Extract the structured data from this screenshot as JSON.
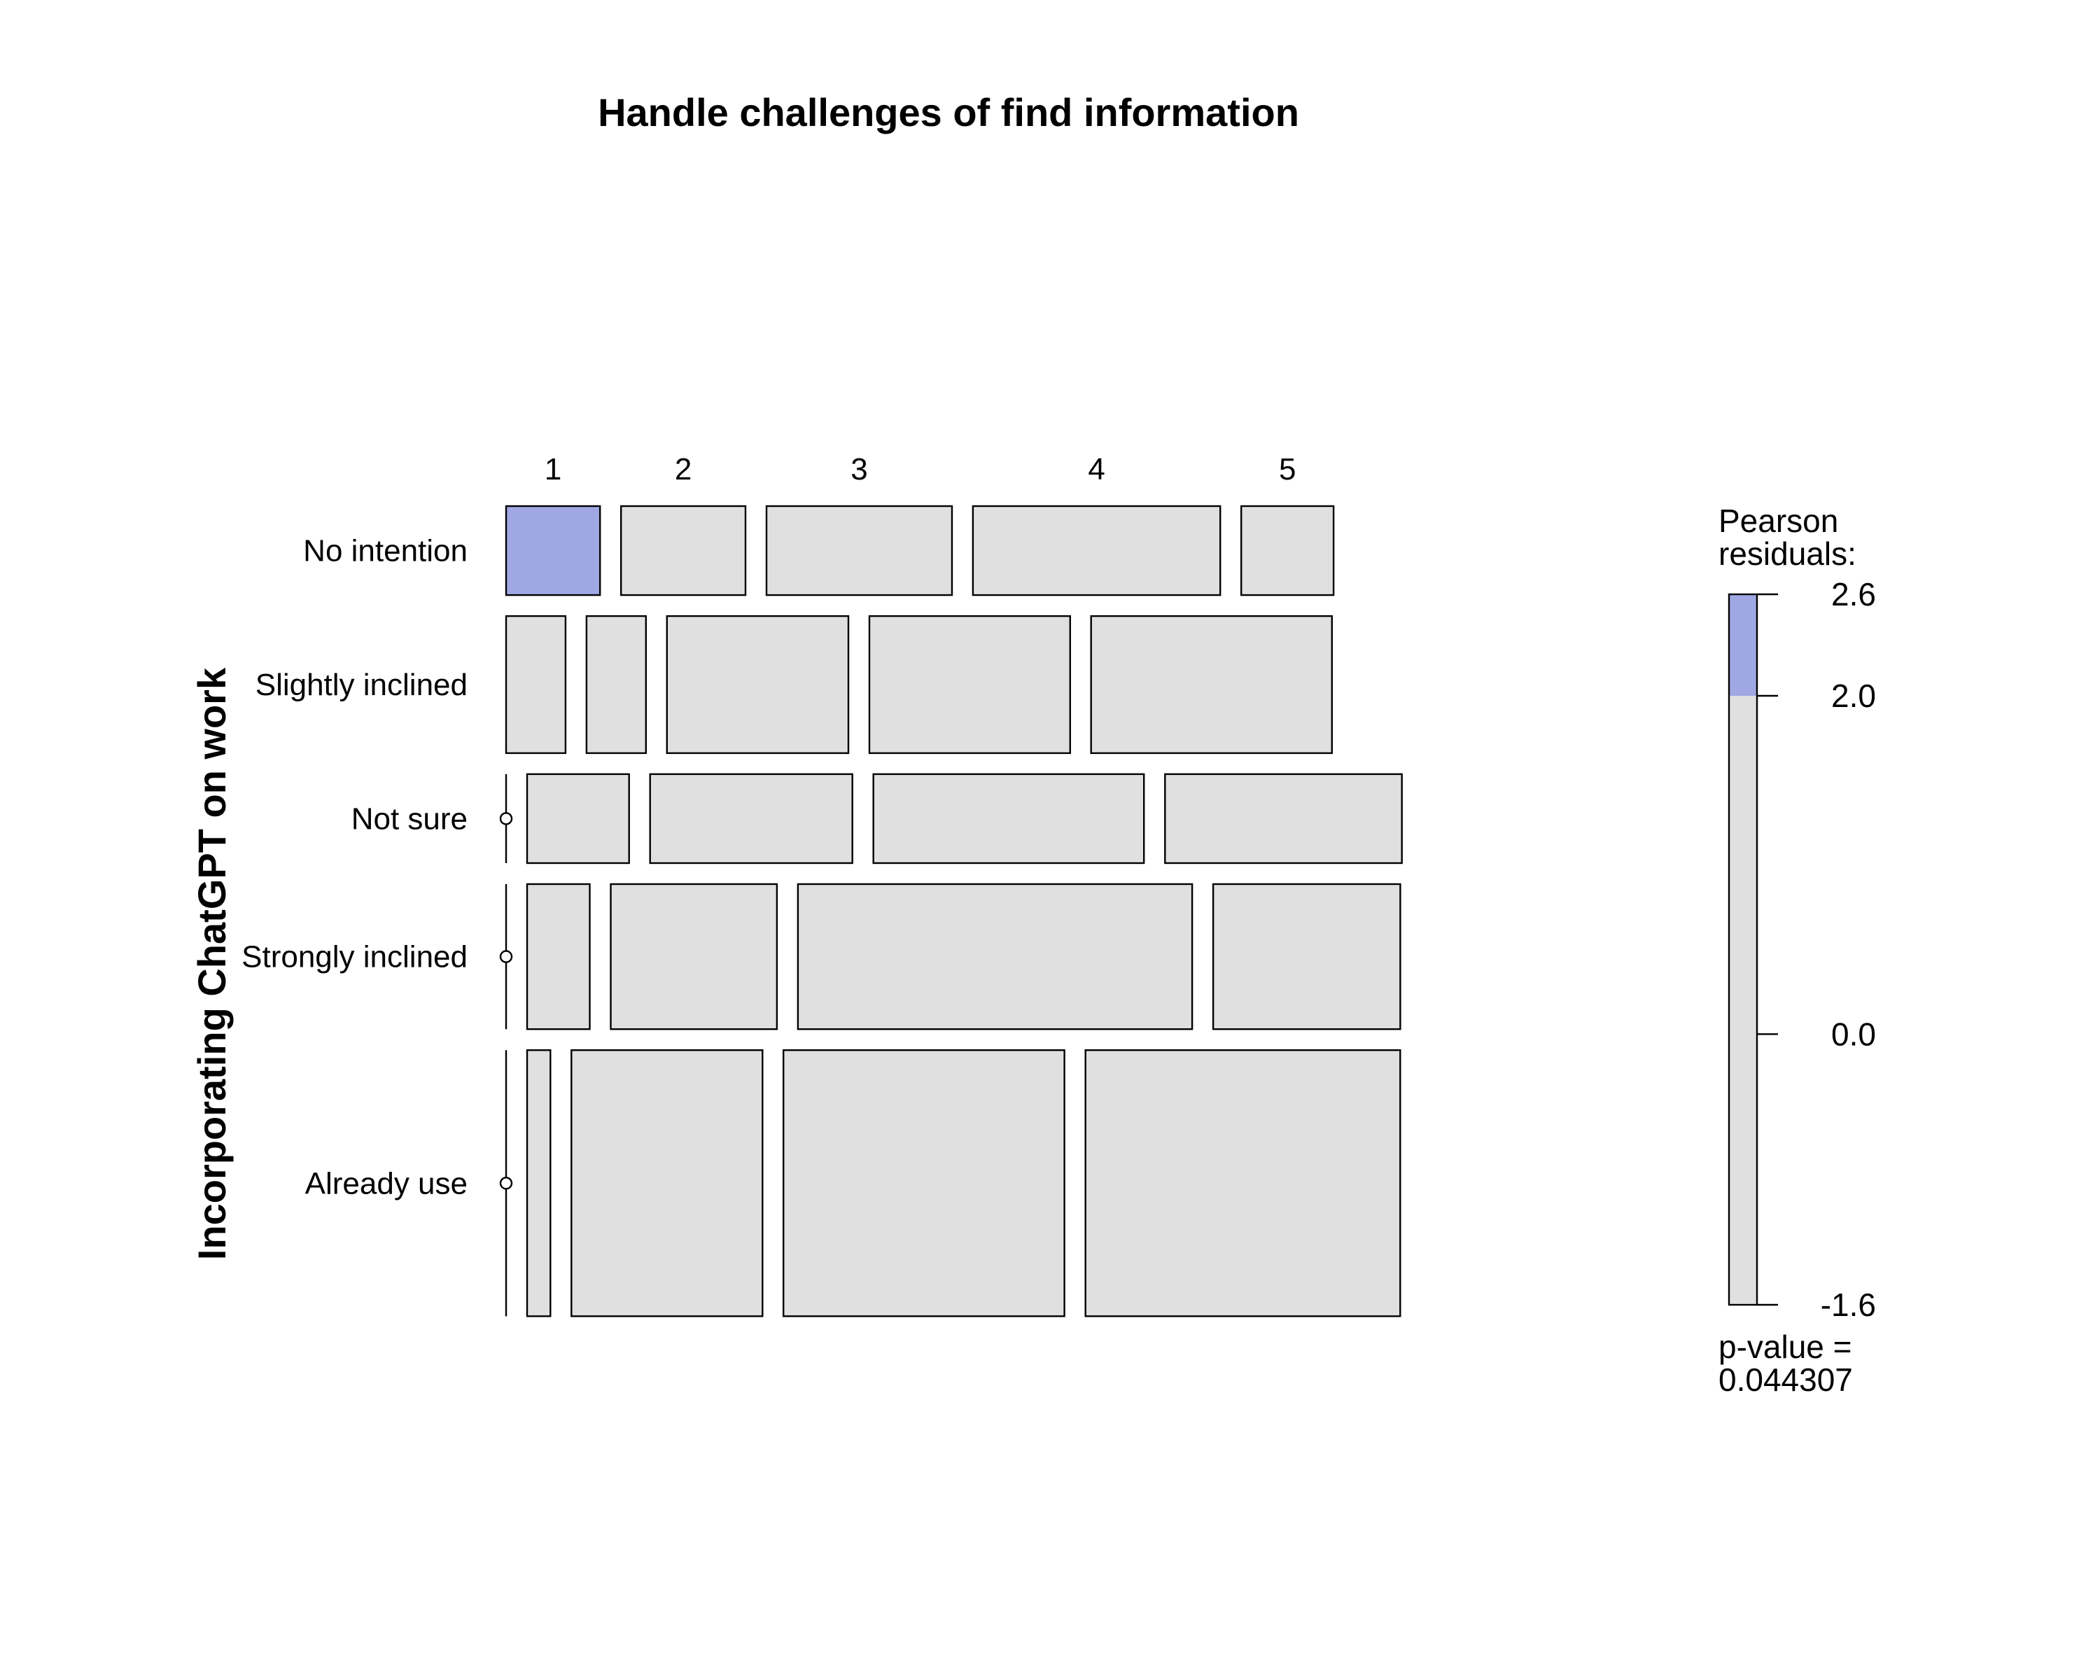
{
  "chart_data": {
    "type": "mosaic",
    "title": "Handle challenges of find information",
    "xlabel": "",
    "ylabel": "Incorporating ChatGPT on work",
    "columns": [
      "1",
      "2",
      "3",
      "4",
      "5"
    ],
    "rows": [
      "No intention",
      "Slightly inclined",
      "Not sure",
      "Strongly inclined",
      "Already use"
    ],
    "row_share": [
      0.111,
      0.171,
      0.111,
      0.181,
      0.332
    ],
    "cell_share": [
      [
        0.117,
        0.155,
        0.231,
        0.308,
        0.115
      ],
      [
        0.074,
        0.074,
        0.226,
        0.25,
        0.3
      ],
      [
        0.0,
        0.127,
        0.252,
        0.337,
        0.295
      ],
      [
        0.0,
        0.078,
        0.207,
        0.491,
        0.233
      ],
      [
        0.0,
        0.029,
        0.238,
        0.35,
        0.392
      ]
    ],
    "residual_colors": [
      [
        "#9fa8e3",
        "#e0e0e0",
        "#e0e0e0",
        "#e0e0e0",
        "#e0e0e0"
      ],
      [
        "#e0e0e0",
        "#e0e0e0",
        "#e0e0e0",
        "#e0e0e0",
        "#e0e0e0"
      ],
      [
        "#e0e0e0",
        "#e0e0e0",
        "#e0e0e0",
        "#e0e0e0",
        "#e0e0e0"
      ],
      [
        "#e0e0e0",
        "#e0e0e0",
        "#e0e0e0",
        "#e0e0e0",
        "#e0e0e0"
      ],
      [
        "#e0e0e0",
        "#e0e0e0",
        "#e0e0e0",
        "#e0e0e0",
        "#e0e0e0"
      ]
    ],
    "legend": {
      "title_line1": "Pearson",
      "title_line2": "residuals:",
      "range": [
        -1.6,
        2.6
      ],
      "ticks": [
        {
          "label": "2.6",
          "value": 2.6
        },
        {
          "label": "2.0",
          "value": 2.0
        },
        {
          "label": "0.0",
          "value": 0.0
        },
        {
          "label": "-1.6",
          "value": -1.6
        }
      ],
      "shade_from": 2.0,
      "shade_color": "#9fa8e3",
      "base_color": "#e0e0e0"
    },
    "pvalue_line1": "p-value =",
    "pvalue_line2": "0.044307"
  }
}
